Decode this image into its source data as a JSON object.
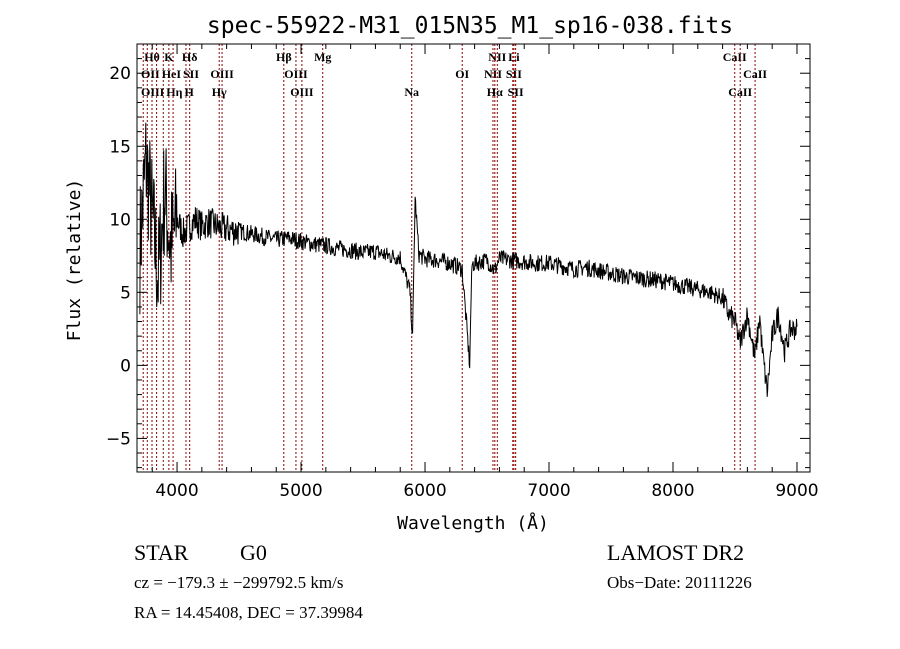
{
  "chart_data": {
    "type": "line",
    "title": "spec-55922-M31_015N35_M1_sp16-038.fits",
    "xlabel": "Wavelength (Å)",
    "ylabel": "Flux (relative)",
    "xlim": [
      3677,
      9105
    ],
    "ylim": [
      -7.3,
      22
    ],
    "xticks": [
      4000,
      5000,
      6000,
      7000,
      8000,
      9000
    ],
    "yticks": [
      -5,
      0,
      5,
      10,
      15,
      20
    ],
    "grid": false,
    "series": [
      {
        "name": "flux",
        "color": "#000000",
        "x": [
          3700,
          3750,
          3800,
          3850,
          3900,
          3950,
          4000,
          4050,
          4100,
          4150,
          4200,
          4250,
          4300,
          4350,
          4400,
          4500,
          4600,
          4700,
          4800,
          4900,
          5000,
          5100,
          5200,
          5300,
          5400,
          5500,
          5600,
          5700,
          5800,
          5880,
          5900,
          5920,
          5950,
          6000,
          6100,
          6200,
          6300,
          6360,
          6370,
          6380,
          6450,
          6500,
          6563,
          6600,
          6700,
          6800,
          6900,
          7000,
          7100,
          7200,
          7300,
          7400,
          7500,
          7600,
          7700,
          7800,
          7900,
          8000,
          8100,
          8200,
          8300,
          8400,
          8450,
          8500,
          8540,
          8600,
          8660,
          8700,
          8720,
          8760,
          8800,
          8850,
          8900,
          8950,
          9000
        ],
        "y": [
          8,
          14,
          10,
          6,
          12,
          8,
          10,
          9,
          9.5,
          10,
          9.5,
          9.8,
          9.6,
          9.4,
          9.3,
          9.2,
          9,
          8.8,
          8.6,
          8.7,
          8.5,
          8.3,
          8.2,
          8,
          7.9,
          7.7,
          7.8,
          7.5,
          7.4,
          5,
          1.8,
          11.5,
          7.6,
          7.3,
          7.2,
          7,
          6.6,
          0,
          4,
          6.9,
          7.1,
          7.2,
          6.5,
          7.3,
          7.2,
          7.1,
          7,
          7,
          6.8,
          6.6,
          6.7,
          6.5,
          6.3,
          6.1,
          6,
          5.9,
          5.8,
          5.6,
          5.4,
          5.2,
          5,
          4.6,
          3.5,
          3,
          1.5,
          3.5,
          0.5,
          3.3,
          1,
          -1.8,
          2,
          3.5,
          1,
          2.5,
          2.5
        ]
      }
    ],
    "line_markers": {
      "color": "#8b0000",
      "lines": [
        {
          "label": "Hθ",
          "wavelength": 3798,
          "row": 0
        },
        {
          "label": "K",
          "wavelength": 3934,
          "row": 0
        },
        {
          "label": "Hδ",
          "wavelength": 4102,
          "row": 0
        },
        {
          "label": "Hβ",
          "wavelength": 4861,
          "row": 0
        },
        {
          "label": "Mg",
          "wavelength": 5175,
          "row": 0
        },
        {
          "label": "NII",
          "wavelength": 6583,
          "row": 0
        },
        {
          "label": "Li",
          "wavelength": 6708,
          "row": 0
        },
        {
          "label": "CaII",
          "wavelength": 8498,
          "row": 0
        },
        {
          "label": "OII",
          "wavelength": 3727,
          "row": 1
        },
        {
          "label": "HeI",
          "wavelength": 3889,
          "row": 1
        },
        {
          "label": "SII",
          "wavelength": 4072,
          "row": 1
        },
        {
          "label": "OIII",
          "wavelength": 4363,
          "row": 1
        },
        {
          "label": "OIII",
          "wavelength": 4959,
          "row": 1
        },
        {
          "label": "OI",
          "wavelength": 6300,
          "row": 1
        },
        {
          "label": "NII",
          "wavelength": 6548,
          "row": 1
        },
        {
          "label": "SII",
          "wavelength": 6717,
          "row": 1
        },
        {
          "label": "CaII",
          "wavelength": 8662,
          "row": 1
        },
        {
          "label": "OIII",
          "wavelength": 3760,
          "row": 2
        },
        {
          "label": "Hη",
          "wavelength": 3835,
          "row": 2
        },
        {
          "label": "H",
          "wavelength": 3968,
          "row": 2
        },
        {
          "label": "Hγ",
          "wavelength": 4340,
          "row": 2
        },
        {
          "label": "OIII",
          "wavelength": 5007,
          "row": 2
        },
        {
          "label": "Na",
          "wavelength": 5893,
          "row": 2
        },
        {
          "label": "Hα",
          "wavelength": 6563,
          "row": 2
        },
        {
          "label": "SII",
          "wavelength": 6731,
          "row": 2
        },
        {
          "label": "CaII",
          "wavelength": 8542,
          "row": 2
        }
      ]
    }
  },
  "footer": {
    "object_type": "STAR",
    "subclass": "G0",
    "survey": "LAMOST DR2",
    "cz": "cz = −179.3 ± −299792.5 km/s",
    "obs_date": "Obs−Date: 20111226",
    "coords": "RA =  14.45408, DEC =  37.39984"
  }
}
